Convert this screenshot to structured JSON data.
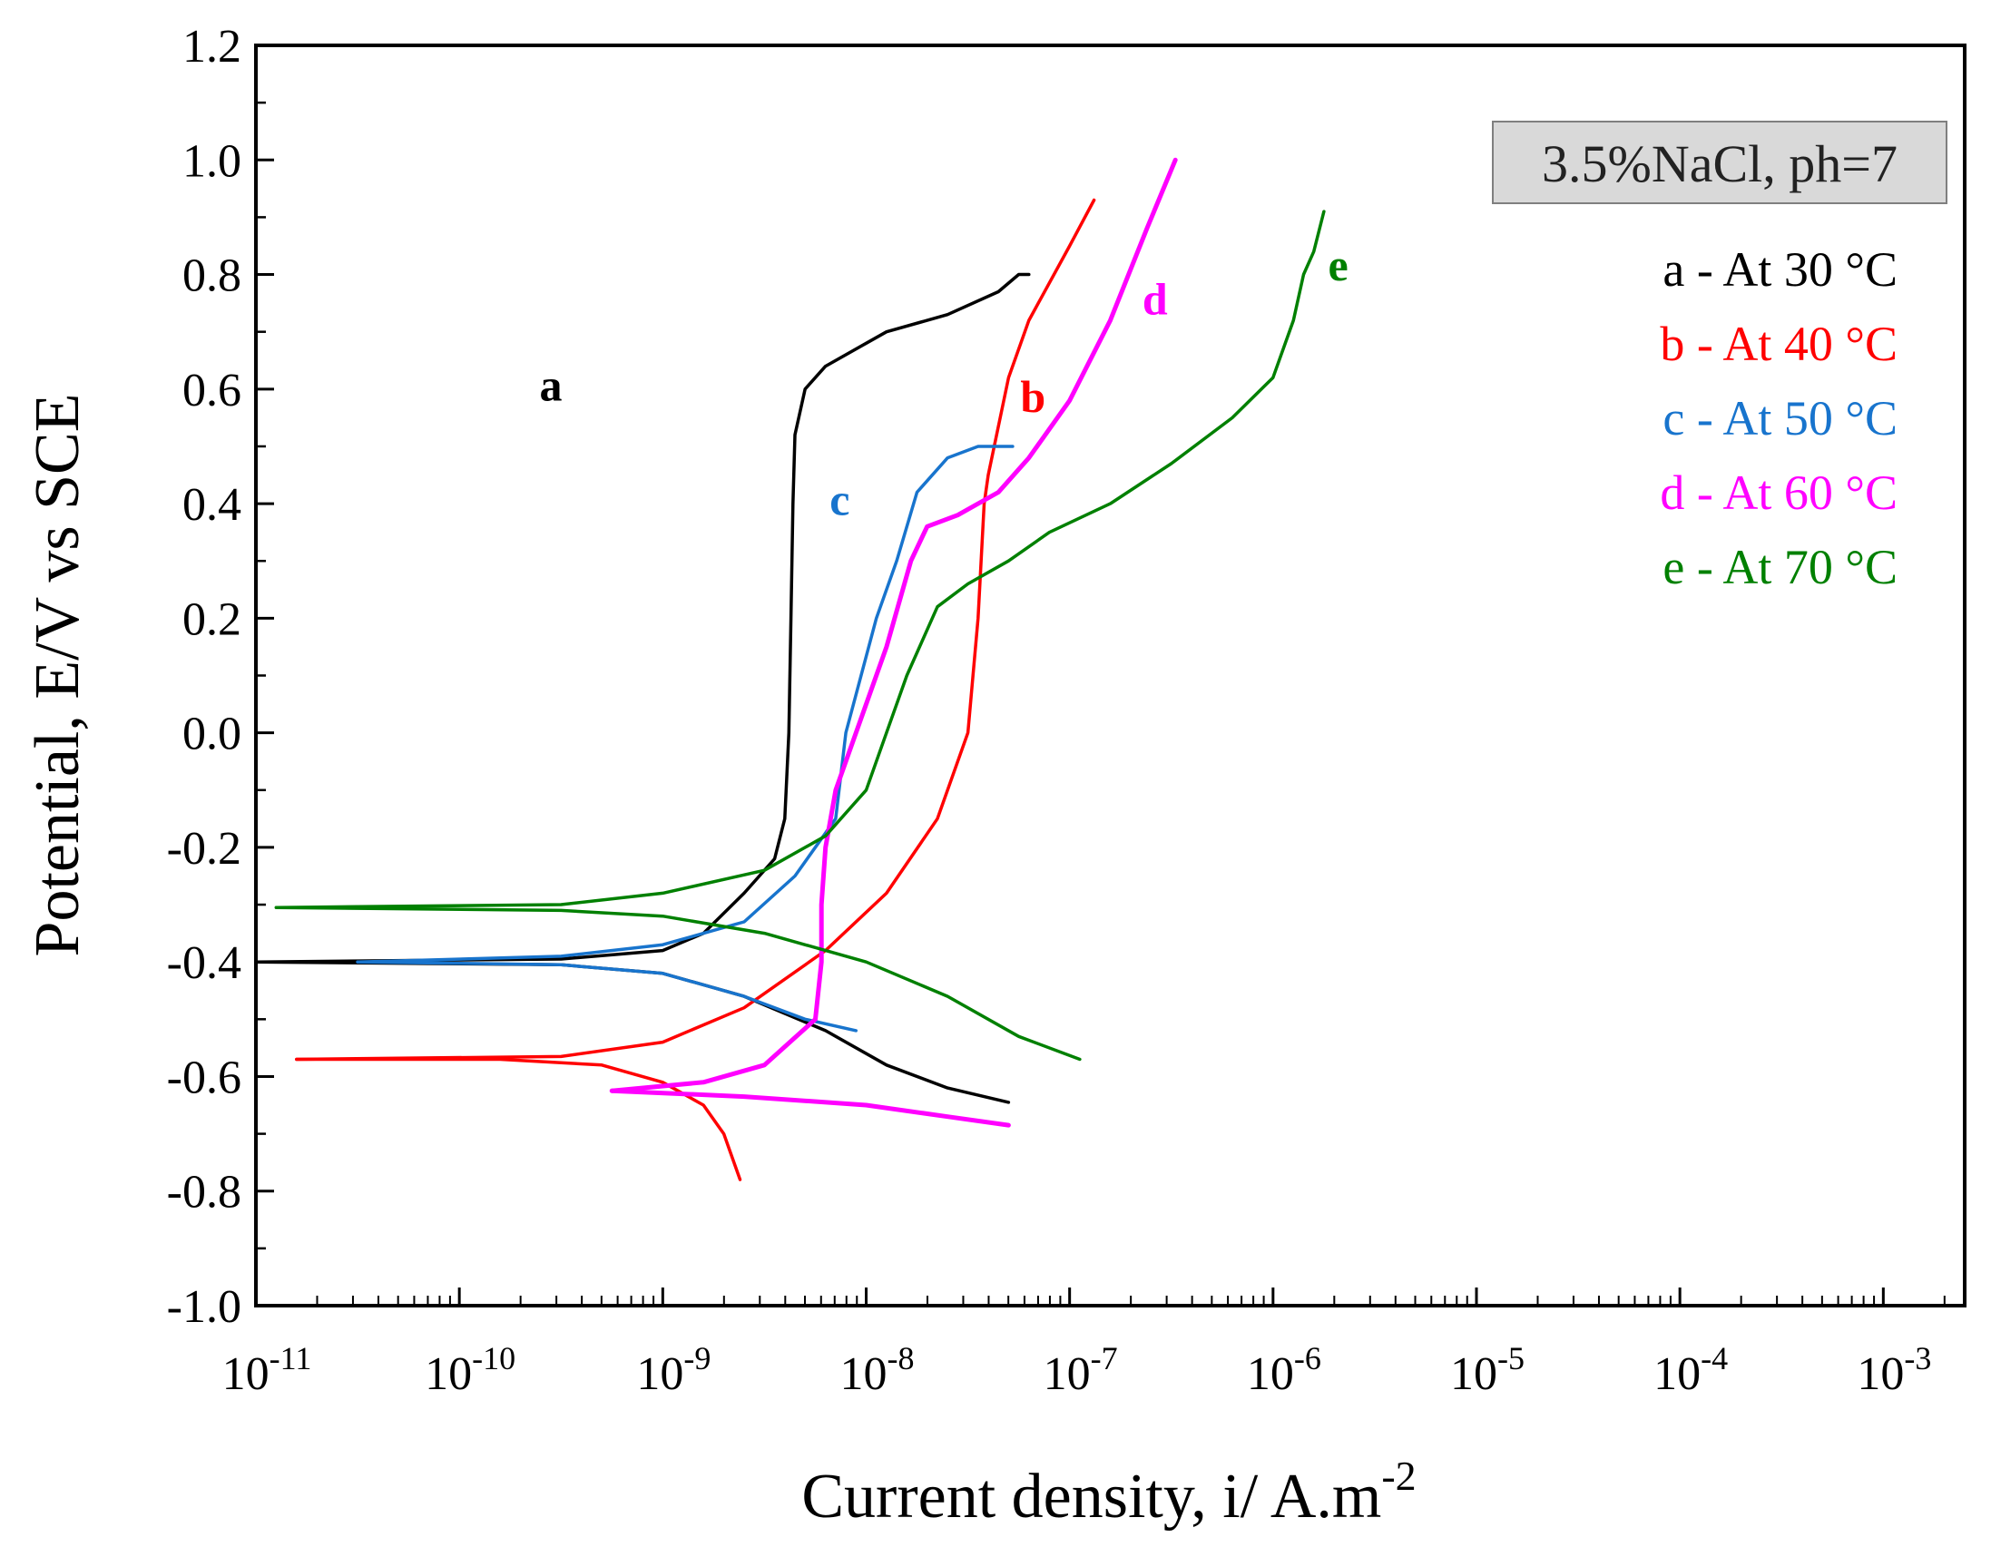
{
  "chart_data": {
    "type": "line",
    "title": "",
    "xlabel": "Current density, i/ A.m",
    "xlabel_sup": "-2",
    "ylabel": "Potential, E/V vs SCE",
    "x_scale": "log",
    "xlim_exp": [
      -11,
      -2.6
    ],
    "ylim": [
      -1.0,
      1.2
    ],
    "x_ticks": [
      {
        "base": "10",
        "exp": "-11",
        "value": -11
      },
      {
        "base": "10",
        "exp": "-10",
        "value": -10
      },
      {
        "base": "10",
        "exp": "-9",
        "value": -9
      },
      {
        "base": "10",
        "exp": "-8",
        "value": -8
      },
      {
        "base": "10",
        "exp": "-7",
        "value": -7
      },
      {
        "base": "10",
        "exp": "-6",
        "value": -6
      },
      {
        "base": "10",
        "exp": "-5",
        "value": -5
      },
      {
        "base": "10",
        "exp": "-4",
        "value": -4
      },
      {
        "base": "10",
        "exp": "-3",
        "value": -3
      }
    ],
    "y_ticks": [
      {
        "label": "1.2",
        "value": 1.2
      },
      {
        "label": "1.0",
        "value": 1.0
      },
      {
        "label": "0.8",
        "value": 0.8
      },
      {
        "label": "0.6",
        "value": 0.6
      },
      {
        "label": "0.4",
        "value": 0.4
      },
      {
        "label": "0.2",
        "value": 0.2
      },
      {
        "label": "0.0",
        "value": 0.0
      },
      {
        "label": "-0.2",
        "value": -0.2
      },
      {
        "label": "-0.4",
        "value": -0.4
      },
      {
        "label": "-0.6",
        "value": -0.6
      },
      {
        "label": "-0.8",
        "value": -0.8
      },
      {
        "label": "-1.0",
        "value": -1.0
      }
    ],
    "annotation": "3.5%NaCl, ph=7",
    "series": [
      {
        "id": "a",
        "tag": "a",
        "legend": "a - At 30 °C",
        "color": "#000000",
        "tag_at": [
          -9.55,
          0.58
        ],
        "anodic": [
          [
            -11.0,
            -0.4
          ],
          [
            -9.5,
            -0.395
          ],
          [
            -9.0,
            -0.38
          ],
          [
            -8.8,
            -0.35
          ],
          [
            -8.6,
            -0.28
          ],
          [
            -8.45,
            -0.22
          ],
          [
            -8.4,
            -0.15
          ],
          [
            -8.38,
            0.0
          ],
          [
            -8.37,
            0.2
          ],
          [
            -8.36,
            0.4
          ],
          [
            -8.35,
            0.52
          ],
          [
            -8.3,
            0.6
          ],
          [
            -8.2,
            0.64
          ],
          [
            -8.0,
            0.68
          ],
          [
            -7.9,
            0.7
          ],
          [
            -7.6,
            0.73
          ],
          [
            -7.35,
            0.77
          ],
          [
            -7.25,
            0.8
          ],
          [
            -7.2,
            0.8
          ]
        ],
        "cathodic": [
          [
            -11.0,
            -0.4
          ],
          [
            -9.5,
            -0.405
          ],
          [
            -9.0,
            -0.42
          ],
          [
            -8.6,
            -0.46
          ],
          [
            -8.2,
            -0.52
          ],
          [
            -7.9,
            -0.58
          ],
          [
            -7.6,
            -0.62
          ],
          [
            -7.3,
            -0.645
          ]
        ]
      },
      {
        "id": "b",
        "tag": "b",
        "legend": "b - At 40 °C",
        "color": "#ff0000",
        "tag_at": [
          -7.18,
          0.56
        ],
        "anodic": [
          [
            -10.8,
            -0.57
          ],
          [
            -9.5,
            -0.565
          ],
          [
            -9.0,
            -0.54
          ],
          [
            -8.6,
            -0.48
          ],
          [
            -8.2,
            -0.38
          ],
          [
            -7.9,
            -0.28
          ],
          [
            -7.65,
            -0.15
          ],
          [
            -7.5,
            0.0
          ],
          [
            -7.45,
            0.2
          ],
          [
            -7.42,
            0.4
          ],
          [
            -7.4,
            0.45
          ],
          [
            -7.3,
            0.62
          ],
          [
            -7.2,
            0.72
          ],
          [
            -7.0,
            0.85
          ],
          [
            -6.88,
            0.93
          ]
        ],
        "cathodic": [
          [
            -10.8,
            -0.57
          ],
          [
            -9.8,
            -0.57
          ],
          [
            -9.3,
            -0.58
          ],
          [
            -9.0,
            -0.61
          ],
          [
            -8.8,
            -0.65
          ],
          [
            -8.7,
            -0.7
          ],
          [
            -8.62,
            -0.78
          ]
        ]
      },
      {
        "id": "c",
        "tag": "c",
        "legend": "c - At 50 °C",
        "color": "#1874cd",
        "tag_at": [
          -8.13,
          0.38
        ],
        "anodic": [
          [
            -10.5,
            -0.4
          ],
          [
            -9.5,
            -0.39
          ],
          [
            -9.0,
            -0.37
          ],
          [
            -8.6,
            -0.33
          ],
          [
            -8.35,
            -0.25
          ],
          [
            -8.15,
            -0.15
          ],
          [
            -8.1,
            0.0
          ],
          [
            -7.95,
            0.2
          ],
          [
            -7.85,
            0.3
          ],
          [
            -7.75,
            0.42
          ],
          [
            -7.6,
            0.48
          ],
          [
            -7.45,
            0.5
          ],
          [
            -7.28,
            0.5
          ]
        ],
        "cathodic": [
          [
            -10.5,
            -0.4
          ],
          [
            -9.5,
            -0.405
          ],
          [
            -9.0,
            -0.42
          ],
          [
            -8.6,
            -0.46
          ],
          [
            -8.3,
            -0.5
          ],
          [
            -8.05,
            -0.52
          ]
        ]
      },
      {
        "id": "d",
        "tag": "d",
        "legend": "d - At 60 °C",
        "color": "#ff00ff",
        "tag_at": [
          -6.58,
          0.73
        ],
        "anodic": [
          [
            -9.25,
            -0.625
          ],
          [
            -8.8,
            -0.61
          ],
          [
            -8.5,
            -0.58
          ],
          [
            -8.25,
            -0.5
          ],
          [
            -8.22,
            -0.4
          ],
          [
            -8.22,
            -0.3
          ],
          [
            -8.2,
            -0.2
          ],
          [
            -8.15,
            -0.1
          ],
          [
            -8.05,
            0.0
          ],
          [
            -7.9,
            0.15
          ],
          [
            -7.78,
            0.3
          ],
          [
            -7.7,
            0.36
          ],
          [
            -7.55,
            0.38
          ],
          [
            -7.35,
            0.42
          ],
          [
            -7.2,
            0.48
          ],
          [
            -7.0,
            0.58
          ],
          [
            -6.8,
            0.72
          ],
          [
            -6.62,
            0.88
          ],
          [
            -6.48,
            1.0
          ]
        ],
        "cathodic": [
          [
            -9.25,
            -0.625
          ],
          [
            -8.6,
            -0.635
          ],
          [
            -8.0,
            -0.65
          ],
          [
            -7.6,
            -0.67
          ],
          [
            -7.3,
            -0.685
          ]
        ]
      },
      {
        "id": "e",
        "tag": "e",
        "legend": "e - At 70 °C",
        "color": "#008000",
        "tag_at": [
          -5.68,
          0.79
        ],
        "anodic": [
          [
            -10.9,
            -0.305
          ],
          [
            -9.5,
            -0.3
          ],
          [
            -9.0,
            -0.28
          ],
          [
            -8.5,
            -0.24
          ],
          [
            -8.2,
            -0.18
          ],
          [
            -8.0,
            -0.1
          ],
          [
            -7.9,
            0.0
          ],
          [
            -7.8,
            0.1
          ],
          [
            -7.65,
            0.22
          ],
          [
            -7.5,
            0.26
          ],
          [
            -7.3,
            0.3
          ],
          [
            -7.1,
            0.35
          ],
          [
            -6.8,
            0.4
          ],
          [
            -6.5,
            0.47
          ],
          [
            -6.2,
            0.55
          ],
          [
            -6.0,
            0.62
          ],
          [
            -5.9,
            0.72
          ],
          [
            -5.85,
            0.8
          ],
          [
            -5.8,
            0.84
          ],
          [
            -5.75,
            0.91
          ]
        ],
        "cathodic": [
          [
            -10.9,
            -0.305
          ],
          [
            -9.5,
            -0.31
          ],
          [
            -9.0,
            -0.32
          ],
          [
            -8.5,
            -0.35
          ],
          [
            -8.0,
            -0.4
          ],
          [
            -7.6,
            -0.46
          ],
          [
            -7.25,
            -0.53
          ],
          [
            -6.95,
            -0.57
          ]
        ]
      }
    ]
  }
}
